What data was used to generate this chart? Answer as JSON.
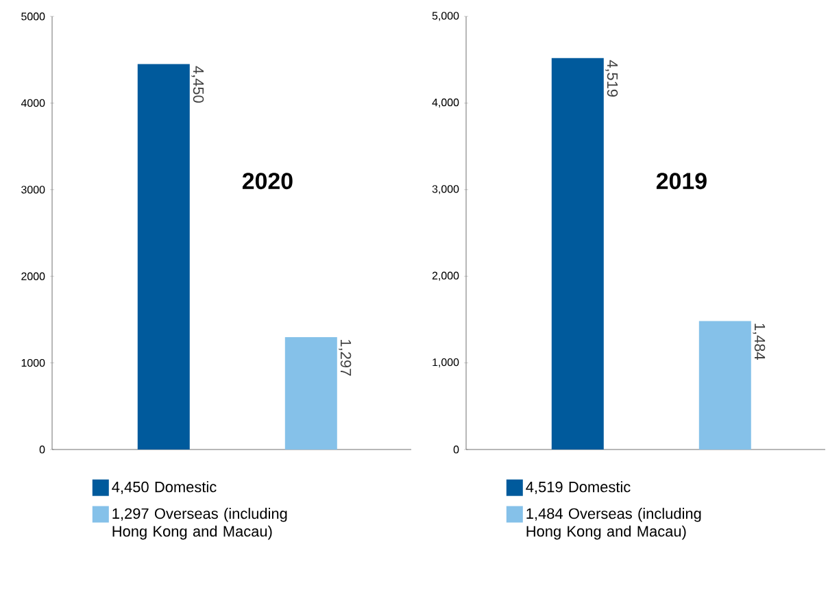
{
  "chart_data": [
    {
      "type": "bar",
      "categories": [
        null,
        null
      ],
      "ylim": [
        0,
        5000
      ],
      "yticks": [
        0,
        1000,
        2000,
        3000,
        4000,
        5000
      ],
      "legend": "bottom",
      "annotations": [
        "2020"
      ],
      "series": [
        {
          "name": "4,450 Domestic",
          "color": "#005a9c",
          "values": [
            4450,
            null
          ],
          "value_labels": [
            "4,450",
            null
          ]
        },
        {
          "name": "1,297 Overseas (including Hong Kong and Macau)",
          "color": "#85c1e9",
          "values": [
            null,
            1297
          ],
          "value_labels": [
            null,
            "1,297"
          ]
        }
      ]
    },
    {
      "type": "bar",
      "categories": [
        null,
        null
      ],
      "ylim": [
        0,
        5000
      ],
      "yticks": [
        0,
        {
          "value": 1000,
          "label": "1,000"
        },
        {
          "value": 2000,
          "label": "2,000"
        },
        {
          "value": 3000,
          "label": "3,000"
        },
        {
          "value": 4000,
          "label": "4,000"
        },
        {
          "value": 5000,
          "label": "5,000"
        }
      ],
      "legend": "bottom",
      "annotations": [
        "2019"
      ],
      "series": [
        {
          "name": "4,519 Domestic",
          "color": "#005a9c",
          "values": [
            4519,
            null
          ],
          "value_labels": [
            "4,519",
            null
          ]
        },
        {
          "name": "1,484 Overseas (including Hong Kong and Macau)",
          "color": "#85c1e9",
          "values": [
            null,
            1484
          ],
          "value_labels": [
            null,
            "1,484"
          ]
        }
      ]
    }
  ]
}
